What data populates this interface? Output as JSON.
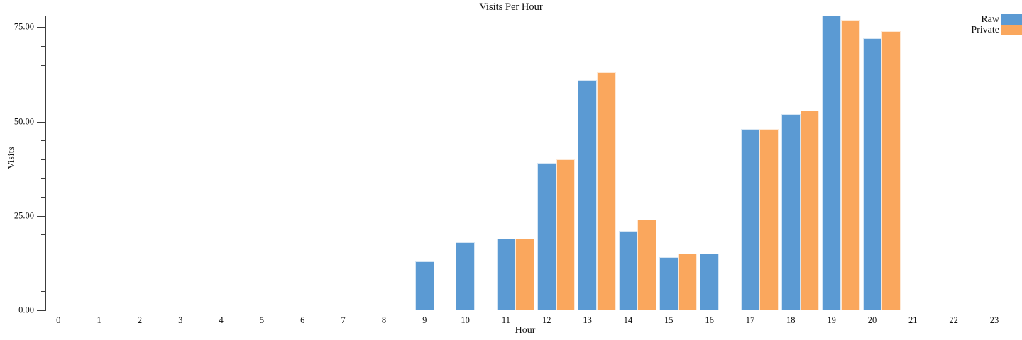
{
  "chart_data": {
    "type": "bar",
    "title": "Visits Per Hour",
    "xlabel": "Hour",
    "ylabel": "Visits",
    "categories": [
      0,
      1,
      2,
      3,
      4,
      5,
      6,
      7,
      8,
      9,
      10,
      11,
      12,
      13,
      14,
      15,
      16,
      17,
      18,
      19,
      20,
      21,
      22,
      23
    ],
    "series": [
      {
        "name": "Raw",
        "color": "#5b9ad3",
        "values": [
          0,
          0,
          0,
          0,
          0,
          0,
          0,
          0,
          0,
          13,
          18,
          19,
          39,
          61,
          21,
          14,
          15,
          48,
          52,
          78,
          72,
          0,
          0,
          0
        ]
      },
      {
        "name": "Private",
        "color": "#faa75d",
        "values": [
          0,
          0,
          0,
          0,
          0,
          0,
          0,
          0,
          0,
          0,
          0,
          19,
          40,
          63,
          24,
          15,
          0,
          48,
          53,
          77,
          74,
          0,
          0,
          0
        ]
      }
    ],
    "y_axis": {
      "tick_values": [
        0,
        25,
        50,
        75
      ],
      "tick_labels": [
        "0.00",
        "25.00",
        "50.00",
        "75.00"
      ],
      "minor_tick_step": 5,
      "max": 78
    },
    "legend": {
      "position": "top-right",
      "items": [
        "Raw",
        "Private"
      ]
    },
    "grid": "off"
  }
}
